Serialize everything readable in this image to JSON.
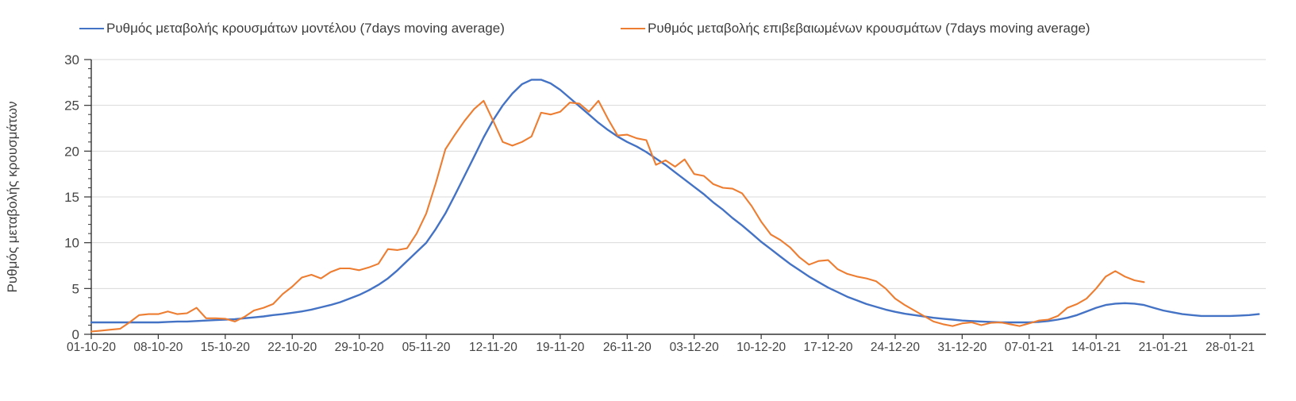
{
  "colors": {
    "model_line": "#4472C4",
    "confirmed_line": "#ED7D31",
    "grid": "#D9D9D9",
    "axis": "#333333",
    "text": "#444444",
    "background": "#FFFFFF"
  },
  "chart_data": {
    "type": "line",
    "title": "",
    "xlabel": "",
    "ylabel": "Ρυθμός μεταβολής κρουσμάτων",
    "ylim": [
      0,
      30
    ],
    "y_major_ticks": [
      0,
      5,
      10,
      15,
      20,
      25,
      30
    ],
    "y_minor_step": 1,
    "grid": "horizontal light gray at each major y tick",
    "legend_position": "top",
    "x_tick_labels": [
      "01-10-20",
      "08-10-20",
      "15-10-20",
      "22-10-20",
      "29-10-20",
      "05-11-20",
      "12-11-20",
      "19-11-20",
      "26-11-20",
      "03-12-20",
      "10-12-20",
      "17-12-20",
      "24-12-20",
      "31-12-20",
      "07-01-21",
      "14-01-21",
      "21-01-21",
      "28-01-21"
    ],
    "x_tick_days": [
      0,
      7,
      14,
      21,
      28,
      35,
      42,
      49,
      56,
      63,
      70,
      77,
      84,
      91,
      98,
      105,
      112,
      119
    ],
    "x_unit": "daily points starting 01-10-20",
    "series": [
      {
        "name": "Ρυθμός μεταβολής κρουσμάτων μοντέλου (7days moving average)",
        "color": "#4472C4",
        "start_day": 0,
        "values": [
          1.3,
          1.3,
          1.3,
          1.3,
          1.3,
          1.3,
          1.3,
          1.3,
          1.35,
          1.4,
          1.4,
          1.45,
          1.5,
          1.55,
          1.6,
          1.65,
          1.75,
          1.85,
          1.95,
          2.1,
          2.2,
          2.35,
          2.5,
          2.7,
          2.95,
          3.2,
          3.5,
          3.9,
          4.3,
          4.8,
          5.4,
          6.1,
          7.0,
          8.0,
          9.0,
          10.0,
          11.5,
          13.2,
          15.2,
          17.3,
          19.4,
          21.5,
          23.4,
          25.0,
          26.3,
          27.3,
          27.8,
          27.8,
          27.4,
          26.7,
          25.8,
          24.9,
          24.0,
          23.1,
          22.3,
          21.6,
          21.0,
          20.5,
          19.9,
          19.2,
          18.5,
          17.7,
          16.9,
          16.1,
          15.3,
          14.4,
          13.6,
          12.7,
          11.9,
          11.0,
          10.1,
          9.3,
          8.5,
          7.7,
          7.0,
          6.3,
          5.7,
          5.1,
          4.6,
          4.1,
          3.7,
          3.3,
          3.0,
          2.7,
          2.45,
          2.25,
          2.1,
          1.95,
          1.8,
          1.7,
          1.6,
          1.5,
          1.45,
          1.4,
          1.35,
          1.3,
          1.3,
          1.3,
          1.3,
          1.35,
          1.45,
          1.6,
          1.8,
          2.1,
          2.5,
          2.9,
          3.2,
          3.35,
          3.4,
          3.35,
          3.2,
          2.9,
          2.6,
          2.4,
          2.2,
          2.1,
          2.0,
          2.0,
          2.0,
          2.0,
          2.05,
          2.1,
          2.2
        ]
      },
      {
        "name": "Ρυθμός μεταβολής επιβεβαιωμένων κρουσμάτων (7days moving average)",
        "color": "#ED7D31",
        "start_day": 0,
        "values": [
          0.3,
          0.4,
          0.5,
          0.6,
          1.3,
          2.1,
          2.2,
          2.2,
          2.5,
          2.2,
          2.3,
          2.9,
          1.75,
          1.75,
          1.7,
          1.4,
          1.9,
          2.6,
          2.9,
          3.3,
          4.4,
          5.2,
          6.2,
          6.5,
          6.1,
          6.8,
          7.2,
          7.2,
          7.0,
          7.3,
          7.7,
          9.3,
          9.2,
          9.4,
          11.0,
          13.2,
          16.5,
          20.2,
          21.8,
          23.3,
          24.6,
          25.5,
          23.3,
          21.0,
          20.6,
          21.0,
          21.6,
          24.2,
          24.0,
          24.3,
          25.3,
          25.2,
          24.3,
          25.5,
          23.5,
          21.7,
          21.8,
          21.4,
          21.2,
          18.5,
          19.0,
          18.3,
          19.1,
          17.5,
          17.3,
          16.4,
          16.0,
          15.9,
          15.4,
          14.0,
          12.3,
          10.9,
          10.3,
          9.5,
          8.4,
          7.6,
          8.0,
          8.1,
          7.1,
          6.6,
          6.3,
          6.1,
          5.8,
          5.0,
          3.9,
          3.2,
          2.6,
          2.0,
          1.4,
          1.1,
          0.9,
          1.2,
          1.3,
          1.0,
          1.25,
          1.3,
          1.1,
          0.9,
          1.2,
          1.5,
          1.6,
          2.0,
          2.9,
          3.3,
          3.9,
          5.0,
          6.3,
          6.9,
          6.3,
          5.9,
          5.7
        ]
      }
    ]
  }
}
